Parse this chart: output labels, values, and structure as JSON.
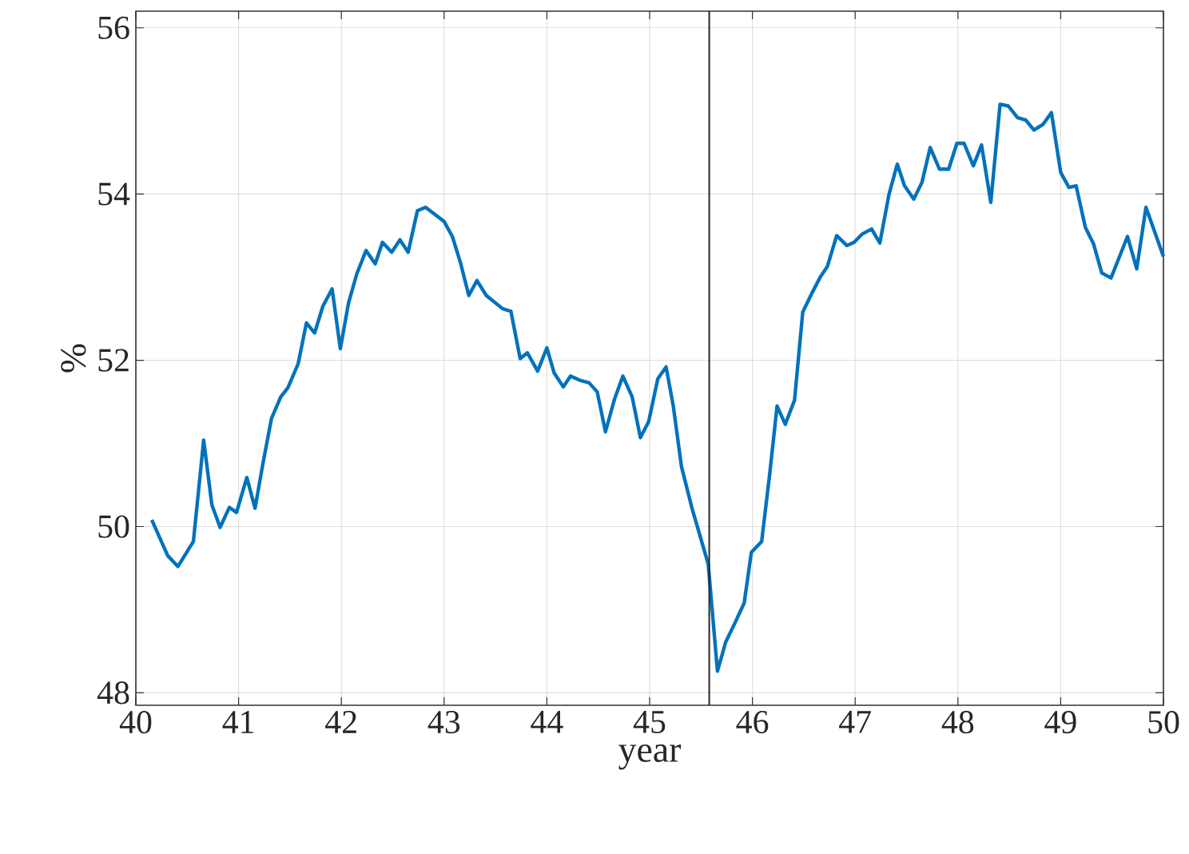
{
  "chart_data": {
    "type": "line",
    "xlabel": "year",
    "ylabel": "%",
    "xlim": [
      40,
      50
    ],
    "ylim": [
      47.85,
      56.2
    ],
    "xticks": [
      40,
      41,
      42,
      43,
      44,
      45,
      46,
      47,
      48,
      49,
      50
    ],
    "yticks": [
      48,
      50,
      52,
      54,
      56
    ],
    "grid": true,
    "marker": "none",
    "line_style": "solid",
    "ref_lines": [
      {
        "axis": "x",
        "value": 45.58,
        "color": "#262626"
      }
    ],
    "series": [
      {
        "color": "#0072bd",
        "x": [
          40.155,
          40.31,
          40.41,
          40.56,
          40.66,
          40.74,
          40.82,
          40.91,
          40.98,
          41.08,
          41.16,
          41.24,
          41.32,
          41.41,
          41.48,
          41.58,
          41.66,
          41.74,
          41.82,
          41.91,
          41.99,
          42.07,
          42.15,
          42.24,
          42.33,
          42.4,
          42.49,
          42.57,
          42.65,
          42.74,
          42.82,
          43.0,
          43.08,
          43.16,
          43.24,
          43.32,
          43.41,
          43.57,
          43.65,
          43.74,
          43.81,
          43.91,
          44.0,
          44.07,
          44.16,
          44.23,
          44.32,
          44.41,
          44.49,
          44.57,
          44.66,
          44.74,
          44.83,
          44.91,
          44.99,
          45.08,
          45.16,
          45.23,
          45.31,
          45.41,
          45.57,
          45.66,
          45.74,
          45.83,
          45.92,
          45.99,
          46.09,
          46.17,
          46.24,
          46.32,
          46.41,
          46.49,
          46.58,
          46.66,
          46.73,
          46.82,
          46.92,
          46.99,
          47.07,
          47.16,
          47.24,
          47.33,
          47.41,
          47.48,
          47.57,
          47.65,
          47.73,
          47.82,
          47.91,
          47.99,
          48.06,
          48.15,
          48.23,
          48.32,
          48.41,
          48.49,
          48.58,
          48.66,
          48.74,
          48.83,
          48.91,
          49.0,
          49.08,
          49.15,
          49.24,
          49.32,
          49.4,
          49.49,
          49.57,
          49.65,
          49.74,
          49.83,
          50.0
        ],
        "values": [
          50.08,
          49.65,
          49.52,
          49.82,
          51.04,
          50.26,
          49.99,
          50.23,
          50.17,
          50.59,
          50.22,
          50.78,
          51.3,
          51.56,
          51.67,
          51.96,
          52.45,
          52.33,
          52.65,
          52.86,
          52.14,
          52.69,
          53.04,
          53.32,
          53.16,
          53.42,
          53.3,
          53.45,
          53.3,
          53.8,
          53.84,
          53.67,
          53.49,
          53.17,
          52.78,
          52.96,
          52.78,
          52.62,
          52.59,
          52.02,
          52.09,
          51.87,
          52.15,
          51.85,
          51.68,
          51.81,
          51.76,
          51.73,
          51.62,
          51.14,
          51.54,
          51.81,
          51.56,
          51.07,
          51.26,
          51.78,
          51.92,
          51.45,
          50.72,
          50.23,
          49.55,
          48.26,
          48.61,
          48.84,
          49.08,
          49.69,
          49.82,
          50.65,
          51.45,
          51.23,
          51.52,
          52.58,
          52.81,
          53.0,
          53.13,
          53.5,
          53.38,
          53.42,
          53.52,
          53.58,
          53.41,
          54.0,
          54.36,
          54.1,
          53.94,
          54.14,
          54.56,
          54.3,
          54.3,
          54.61,
          54.61,
          54.34,
          54.59,
          53.9,
          55.08,
          55.06,
          54.92,
          54.89,
          54.77,
          54.84,
          54.98,
          54.26,
          54.08,
          54.1,
          53.6,
          53.4,
          53.05,
          52.99,
          53.24,
          53.49,
          53.1,
          53.84,
          53.25
        ]
      }
    ]
  }
}
